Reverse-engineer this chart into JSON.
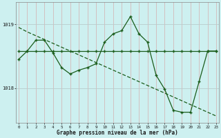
{
  "title": "Graphe pression niveau de la mer (hPa)",
  "bg_color": "#cdf0f0",
  "grid_color_v": "#d4b8b8",
  "grid_color_h": "#b8cccc",
  "line_color": "#1a5c1a",
  "ylim": [
    1017.45,
    1019.35
  ],
  "xlim": [
    0,
    23
  ],
  "yticks": [
    1018,
    1019
  ],
  "xticks": [
    0,
    1,
    2,
    3,
    4,
    5,
    6,
    7,
    8,
    9,
    10,
    11,
    12,
    13,
    14,
    15,
    16,
    17,
    18,
    19,
    20,
    21,
    22,
    23
  ],
  "series_flat": [
    1018.58,
    1018.58,
    1018.58,
    1018.58,
    1018.58,
    1018.58,
    1018.58,
    1018.58,
    1018.58,
    1018.58,
    1018.58,
    1018.58,
    1018.58,
    1018.58,
    1018.58,
    1018.58,
    1018.58,
    1018.58,
    1018.58,
    1018.58,
    1018.58,
    1018.58,
    1018.58,
    1018.58
  ],
  "series_diag": [
    1018.95,
    1018.88,
    1018.82,
    1018.76,
    1018.7,
    1018.64,
    1018.58,
    1018.52,
    1018.46,
    1018.4,
    1018.34,
    1018.28,
    1018.22,
    1018.16,
    1018.1,
    1018.04,
    1017.98,
    1017.92,
    1017.86,
    1017.8,
    1017.74,
    1017.68,
    1017.62,
    1017.56
  ],
  "series_active": [
    1018.45,
    1018.58,
    1018.75,
    1018.75,
    1018.55,
    1018.32,
    1018.22,
    1018.28,
    1018.32,
    1018.38,
    1018.72,
    1018.85,
    1018.9,
    1019.12,
    1018.85,
    1018.72,
    1018.2,
    1017.98,
    1017.65,
    1017.62,
    1017.62,
    1018.1,
    1018.58,
    1018.58
  ]
}
